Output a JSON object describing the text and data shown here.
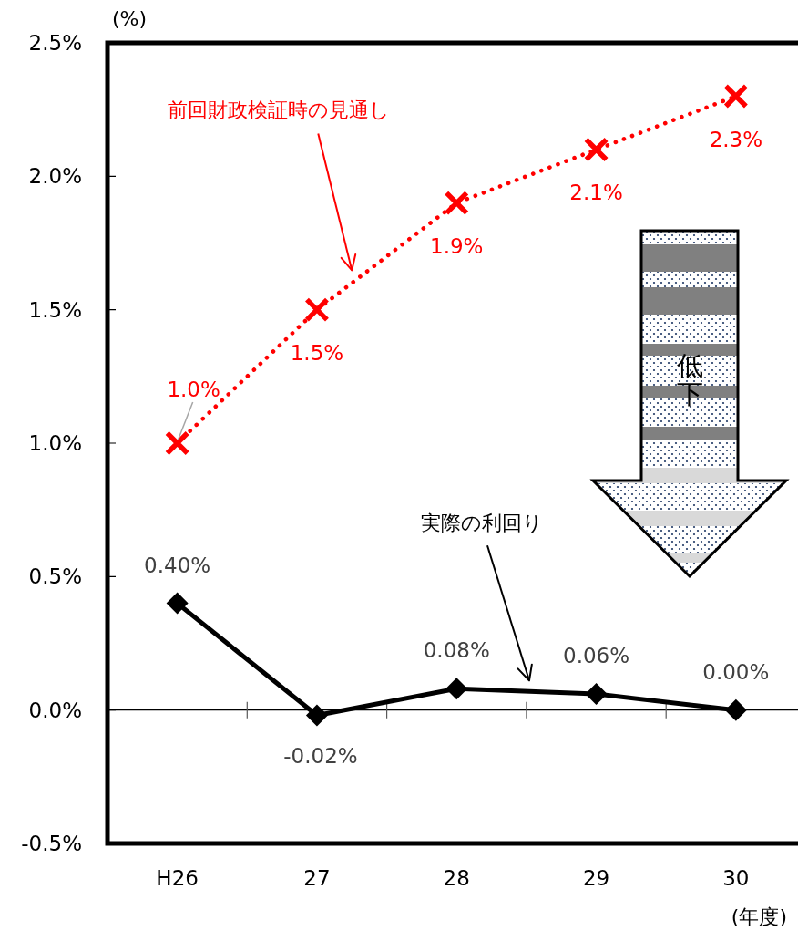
{
  "chart_data": {
    "type": "line",
    "ylabel": "(%)",
    "xlabel": "(年度)",
    "categories": [
      "H26",
      "27",
      "28",
      "29",
      "30"
    ],
    "series": [
      {
        "name": "前回財政検証時の見通し",
        "color": "#ff0000",
        "values": [
          1.0,
          1.5,
          1.9,
          2.1,
          2.3
        ],
        "value_labels": [
          "1.0%",
          "1.5%",
          "1.9%",
          "2.1%",
          "2.3%"
        ],
        "marker": "cross",
        "line_style": "dotted"
      },
      {
        "name": "実際の利回り",
        "color": "#000000",
        "values": [
          0.4,
          -0.02,
          0.08,
          0.06,
          0.0
        ],
        "value_labels": [
          "0.40%",
          "-0.02%",
          "0.08%",
          "0.06%",
          "0.00%"
        ],
        "marker": "diamond",
        "line_style": "solid"
      }
    ],
    "ylim": [
      -0.5,
      2.5
    ],
    "yticks": [
      {
        "value": -0.5,
        "label": "-0.5%"
      },
      {
        "value": 0,
        "label": "0.0%"
      },
      {
        "value": 0.5,
        "label": "0.5%"
      },
      {
        "value": 1,
        "label": "1.0%"
      },
      {
        "value": 1.5,
        "label": "1.5%"
      },
      {
        "value": 2,
        "label": "2.0%"
      },
      {
        "value": 2.5,
        "label": "2.5%"
      }
    ],
    "annotations": [
      "低下"
    ]
  }
}
